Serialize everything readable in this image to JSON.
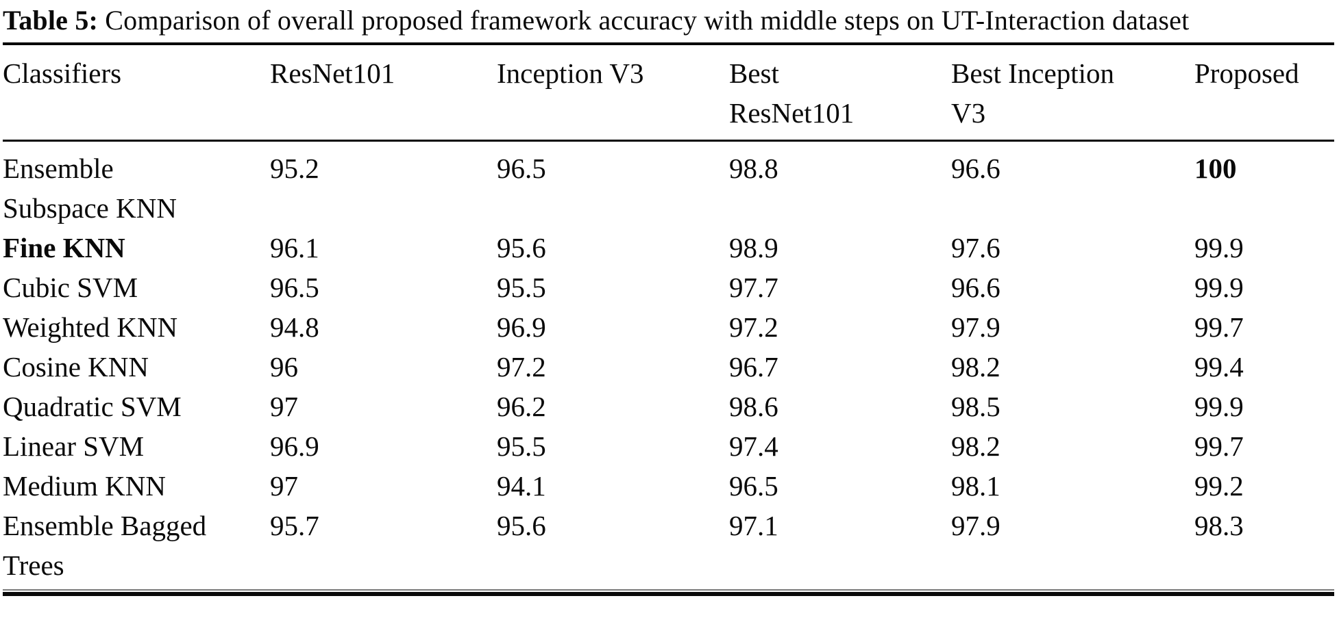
{
  "caption": {
    "label": "Table 5:",
    "text": "Comparison of overall proposed framework accuracy with middle steps on UT-Interaction dataset"
  },
  "table": {
    "columns": [
      "Classifiers",
      "ResNet101",
      "Inception V3",
      "Best\nResNet101",
      "Best Inception\nV3",
      "Proposed"
    ],
    "rows": [
      {
        "label": "Ensemble\nSubspace KNN",
        "values": [
          "95.2",
          "96.5",
          "98.8",
          "96.6",
          "100"
        ]
      },
      {
        "label": "Fine KNN",
        "values": [
          "96.1",
          "95.6",
          "98.9",
          "97.6",
          "99.9"
        ]
      },
      {
        "label": "Cubic SVM",
        "values": [
          "96.5",
          "95.5",
          "97.7",
          "96.6",
          "99.9"
        ]
      },
      {
        "label": "Weighted KNN",
        "values": [
          "94.8",
          "96.9",
          "97.2",
          "97.9",
          "99.7"
        ]
      },
      {
        "label": "Cosine KNN",
        "values": [
          "96",
          "97.2",
          "96.7",
          "98.2",
          "99.4"
        ]
      },
      {
        "label": "Quadratic SVM",
        "values": [
          "97",
          "96.2",
          "98.6",
          "98.5",
          "99.9"
        ]
      },
      {
        "label": "Linear SVM",
        "values": [
          "96.9",
          "95.5",
          "97.4",
          "98.2",
          "99.7"
        ]
      },
      {
        "label": "Medium KNN",
        "values": [
          "97",
          "94.1",
          "96.5",
          "98.1",
          "99.2"
        ]
      },
      {
        "label": "Ensemble Bagged\nTrees",
        "values": [
          "95.7",
          "95.6",
          "97.1",
          "97.9",
          "98.3"
        ]
      }
    ]
  }
}
